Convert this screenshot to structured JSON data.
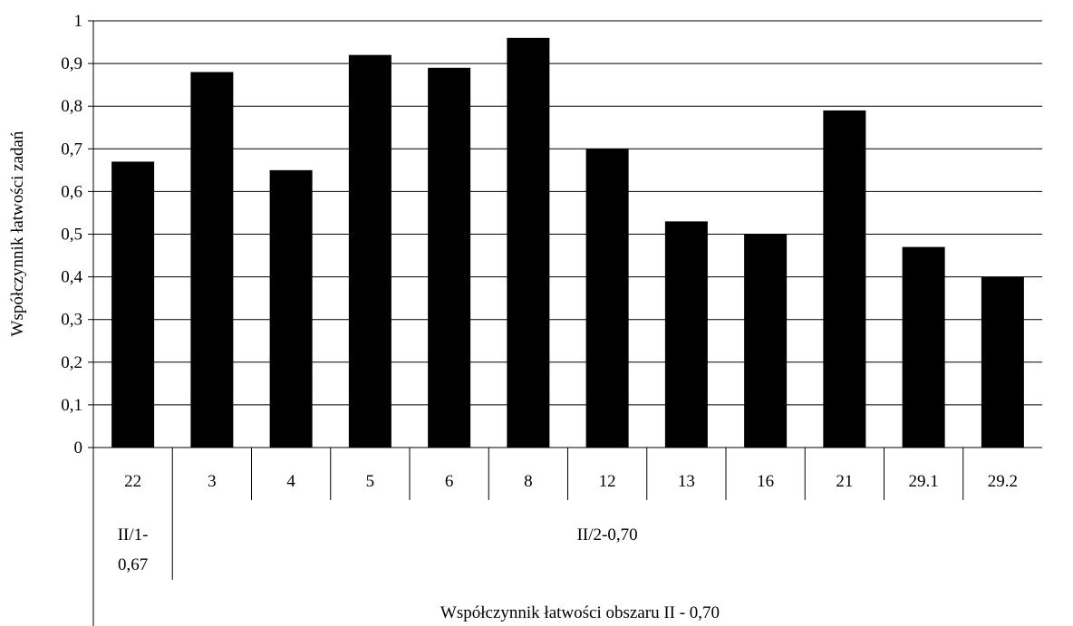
{
  "chart_data": {
    "type": "bar",
    "ylabel": "Współczynnik łatwości zadań",
    "xlabel": "Współczynnik łatwości obszaru II - 0,70",
    "ylim": [
      0,
      1
    ],
    "y_ticks": [
      "0",
      "0,1",
      "0,2",
      "0,3",
      "0,4",
      "0,5",
      "0,6",
      "0,7",
      "0,8",
      "0,9",
      "1"
    ],
    "grid": true,
    "bar_color": "#000000",
    "categories": [
      "22",
      "3",
      "4",
      "5",
      "6",
      "8",
      "12",
      "13",
      "16",
      "21",
      "29.1",
      "29.2"
    ],
    "values": [
      0.67,
      0.88,
      0.65,
      0.92,
      0.89,
      0.96,
      0.7,
      0.53,
      0.5,
      0.79,
      0.47,
      0.4
    ],
    "groups": [
      {
        "label_lines": [
          "II/1-",
          "0,67"
        ],
        "start": 0,
        "end": 0
      },
      {
        "label_lines": [
          "II/2-0,70"
        ],
        "start": 1,
        "end": 11
      }
    ]
  }
}
